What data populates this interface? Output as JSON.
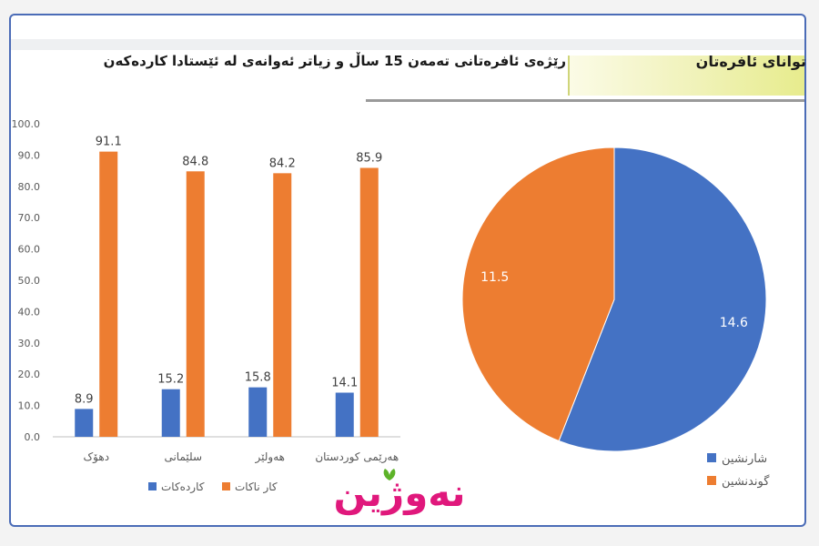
{
  "header": {
    "banner_label": "توانای ئافرەتان",
    "subtitle": "رێژەی ئافرەتانی تەمەن 15 ساڵ و زیاتر ئەوانەی لە ئێستادا کاردەکەن"
  },
  "logo": {
    "text": "نەوژین"
  },
  "colors": {
    "blue": "#4472C4",
    "orange": "#ED7D31",
    "accent_pink": "#e0187c",
    "leaf_green": "#5db329"
  },
  "chart_data": [
    {
      "type": "bar",
      "categories": [
        "دهۆک",
        "سلێمانی",
        "هەولێر",
        "هەرێمی کوردستان"
      ],
      "series": [
        {
          "name": "کاردەکات",
          "color": "#4472C4",
          "values": [
            8.9,
            15.2,
            15.8,
            14.1
          ]
        },
        {
          "name": "کار ناکات",
          "color": "#ED7D31",
          "values": [
            91.1,
            84.8,
            84.2,
            85.9
          ]
        }
      ],
      "value_labels": {
        "series0": [
          "8.9",
          "15.2",
          "15.8",
          "14.1"
        ],
        "series1": [
          "91.1",
          "84.8",
          "84.2",
          "85.9"
        ]
      },
      "ylim": [
        0,
        100
      ],
      "yticks": [
        "0.0",
        "10.0",
        "20.0",
        "30.0",
        "40.0",
        "50.0",
        "60.0",
        "70.0",
        "80.0",
        "90.0",
        "100.0"
      ],
      "grid": false,
      "legend": "bottom"
    },
    {
      "type": "pie",
      "labels": [
        "شارنشین",
        "گوندنشین"
      ],
      "values": [
        14.6,
        11.5
      ],
      "value_labels": [
        "14.6",
        "11.5"
      ],
      "colors": [
        "#4472C4",
        "#ED7D31"
      ],
      "legend": "bottom-right"
    }
  ]
}
